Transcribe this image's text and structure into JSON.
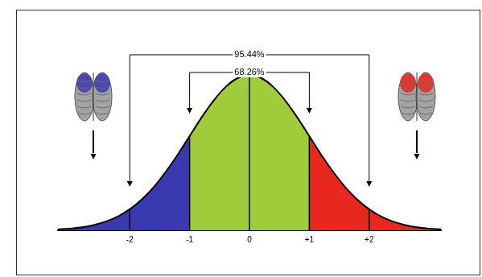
{
  "chart_data": {
    "type": "area",
    "x": [
      -3.2,
      -3.0,
      -2.8,
      -2.6,
      -2.4,
      -2.2,
      -2.0,
      -1.8,
      -1.6,
      -1.4,
      -1.2,
      -1.0,
      -0.8,
      -0.6,
      -0.4,
      -0.2,
      0,
      0.2,
      0.4,
      0.6,
      0.8,
      1.0,
      1.2,
      1.4,
      1.6,
      1.8,
      2.0,
      2.2,
      2.4,
      2.6,
      2.8,
      3.0,
      3.2
    ],
    "values": [
      0.0024,
      0.0044,
      0.0079,
      0.0136,
      0.0224,
      0.0355,
      0.054,
      0.079,
      0.111,
      0.15,
      0.194,
      0.242,
      0.29,
      0.333,
      0.368,
      0.391,
      0.399,
      0.391,
      0.368,
      0.333,
      0.29,
      0.242,
      0.194,
      0.15,
      0.111,
      0.079,
      0.054,
      0.0355,
      0.0224,
      0.0136,
      0.0079,
      0.0044,
      0.0024
    ],
    "colors": [
      "#3a3ab0",
      "#3a3ab0",
      "#3a3ab0",
      "#3a3ab0",
      "#3a3ab0",
      "#3a3ab0",
      "#3a3ab0",
      "#3a3ab0",
      "#3a3ab0",
      "#3a3ab0",
      "#3a3ab0",
      "#9fcc3b",
      "#9fcc3b",
      "#9fcc3b",
      "#9fcc3b",
      "#9fcc3b",
      "#9fcc3b",
      "#9fcc3b",
      "#9fcc3b",
      "#9fcc3b",
      "#9fcc3b",
      "#e8281e",
      "#e8281e",
      "#e8281e",
      "#e8281e",
      "#e8281e",
      "#e8281e",
      "#e8281e",
      "#e8281e",
      "#e8281e",
      "#e8281e",
      "#e8281e",
      "#e8281e"
    ],
    "xlim": [
      -3.2,
      3.2
    ],
    "xticks": [
      -2,
      -1,
      0,
      {
        "value": 1,
        "label": "+1"
      },
      {
        "value": 2,
        "label": "+2"
      }
    ],
    "ylim": [
      0,
      0.42
    ],
    "tick_labels": "x",
    "grid": false,
    "annotations": [
      {
        "text": "95.44%",
        "from": -2,
        "to": 2
      },
      {
        "text": "68.26%",
        "from": -1,
        "to": 1
      }
    ]
  }
}
